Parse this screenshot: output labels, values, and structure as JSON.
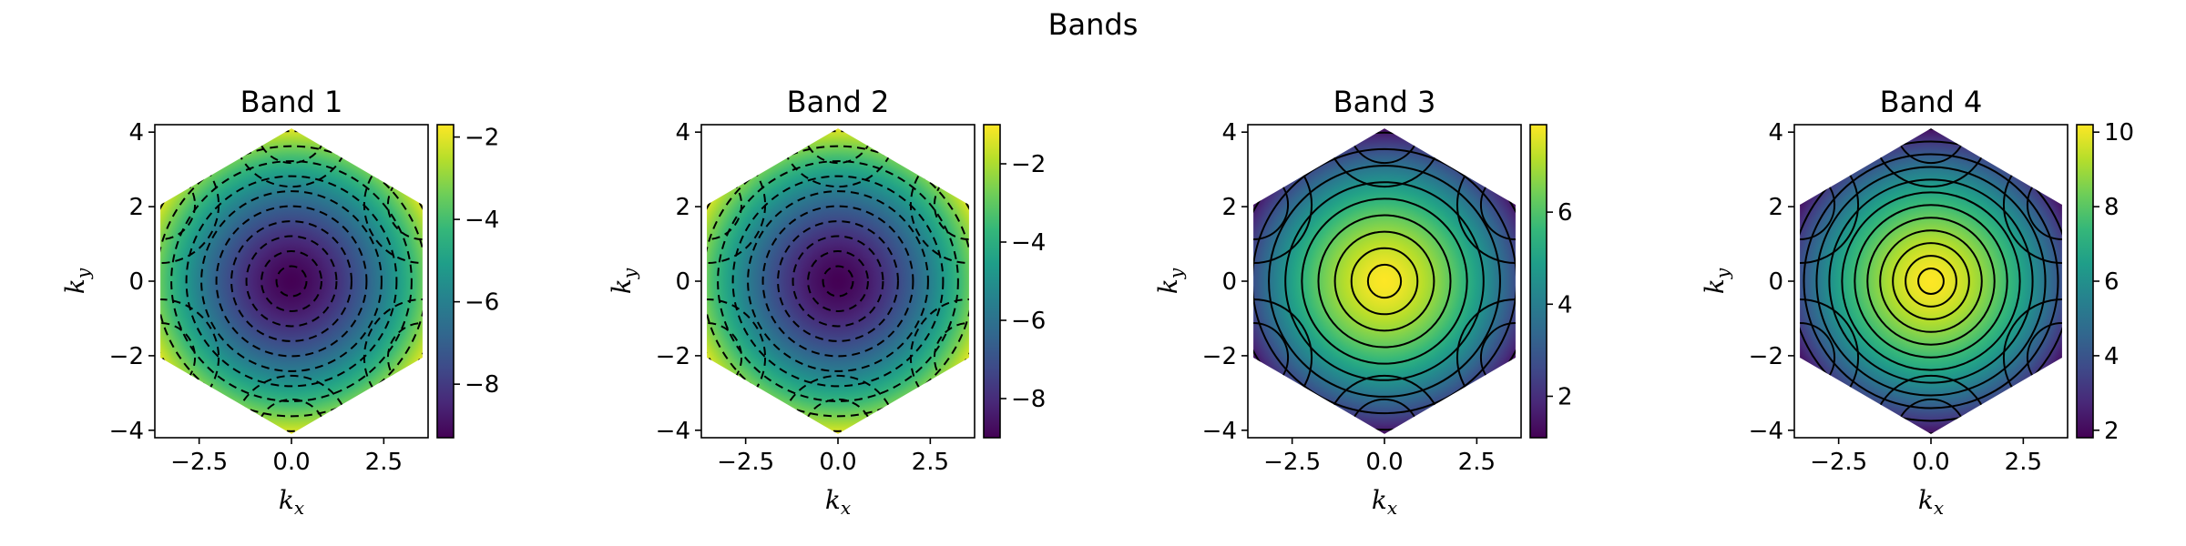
{
  "figure": {
    "suptitle": "Bands",
    "colormap": "viridis",
    "viridis_stops": [
      "#440154",
      "#482878",
      "#3e4a89",
      "#31688e",
      "#26828e",
      "#1f9e89",
      "#35b779",
      "#6ece58",
      "#b5de2b",
      "#fde725"
    ]
  },
  "chart_data": [
    {
      "type": "heatmap",
      "title": "Band 1",
      "xlabel": "k",
      "xlabel_sub": "x",
      "ylabel": "k",
      "ylabel_sub": "y",
      "xlim": [
        -3.7,
        3.7
      ],
      "ylim": [
        -4.2,
        4.2
      ],
      "x_ticks": [
        -2.5,
        0.0,
        2.5
      ],
      "x_tick_labels": [
        "−2.5",
        "0.0",
        "2.5"
      ],
      "y_ticks": [
        -4,
        -2,
        0,
        2,
        4
      ],
      "y_tick_labels": [
        "−4",
        "−2",
        "0",
        "2",
        "4"
      ],
      "domain": "hexagonal Brillouin zone, vertices at (0, ±4.1) and (±3.55, ±2.05)",
      "center_value": -9.3,
      "edge_value": -1.7,
      "shape": "minimum at center, increasing outward",
      "colorbar_range": [
        -9.3,
        -1.7
      ],
      "colorbar_ticks": [
        -8,
        -6,
        -4,
        -2
      ],
      "colorbar_tick_labels": [
        "−8",
        "−6",
        "−4",
        "−2"
      ],
      "contour_style": "dashed",
      "contour_levels": 10
    },
    {
      "type": "heatmap",
      "title": "Band 2",
      "xlabel": "k",
      "xlabel_sub": "x",
      "ylabel": "k",
      "ylabel_sub": "y",
      "xlim": [
        -3.7,
        3.7
      ],
      "ylim": [
        -4.2,
        4.2
      ],
      "x_ticks": [
        -2.5,
        0.0,
        2.5
      ],
      "x_tick_labels": [
        "−2.5",
        "0.0",
        "2.5"
      ],
      "y_ticks": [
        -4,
        -2,
        0,
        2,
        4
      ],
      "y_tick_labels": [
        "−4",
        "−2",
        "0",
        "2",
        "4"
      ],
      "domain": "hexagonal Brillouin zone, vertices at (0, ±4.1) and (±3.55, ±2.05)",
      "center_value": -9.0,
      "edge_value": -1.0,
      "shape": "minimum at center, increasing outward",
      "colorbar_range": [
        -9.0,
        -1.0
      ],
      "colorbar_ticks": [
        -8,
        -6,
        -4,
        -2
      ],
      "colorbar_tick_labels": [
        "−8",
        "−6",
        "−4",
        "−2"
      ],
      "contour_style": "dashed",
      "contour_levels": 10
    },
    {
      "type": "heatmap",
      "title": "Band 3",
      "xlabel": "k",
      "xlabel_sub": "x",
      "ylabel": "k",
      "ylabel_sub": "y",
      "xlim": [
        -3.7,
        3.7
      ],
      "ylim": [
        -4.2,
        4.2
      ],
      "x_ticks": [
        -2.5,
        0.0,
        2.5
      ],
      "x_tick_labels": [
        "−2.5",
        "0.0",
        "2.5"
      ],
      "y_ticks": [
        -4,
        -2,
        0,
        2,
        4
      ],
      "y_tick_labels": [
        "−4",
        "−2",
        "0",
        "2",
        "4"
      ],
      "domain": "hexagonal Brillouin zone, vertices at (0, ±4.1) and (±3.55, ±2.05)",
      "center_value": 7.9,
      "edge_value": 1.1,
      "shape": "maximum at center, decreasing outward",
      "colorbar_range": [
        1.1,
        7.9
      ],
      "colorbar_ticks": [
        2,
        4,
        6
      ],
      "colorbar_tick_labels": [
        "2",
        "4",
        "6"
      ],
      "contour_style": "solid",
      "contour_levels": 9
    },
    {
      "type": "heatmap",
      "title": "Band 4",
      "xlabel": "k",
      "xlabel_sub": "x",
      "ylabel": "k",
      "ylabel_sub": "y",
      "xlim": [
        -3.7,
        3.7
      ],
      "ylim": [
        -4.2,
        4.2
      ],
      "x_ticks": [
        -2.5,
        0.0,
        2.5
      ],
      "x_tick_labels": [
        "−2.5",
        "0.0",
        "2.5"
      ],
      "y_ticks": [
        -4,
        -2,
        0,
        2,
        4
      ],
      "y_tick_labels": [
        "−4",
        "−2",
        "0",
        "2",
        "4"
      ],
      "domain": "hexagonal Brillouin zone, vertices at (0, ±4.1) and (±3.55, ±2.05)",
      "center_value": 10.2,
      "edge_value": 1.8,
      "shape": "maximum at center, decreasing outward",
      "colorbar_range": [
        1.8,
        10.2
      ],
      "colorbar_ticks": [
        2,
        4,
        6,
        8,
        10
      ],
      "colorbar_tick_labels": [
        "2",
        "4",
        "6",
        "8",
        "10"
      ],
      "contour_style": "solid",
      "contour_levels": 12
    }
  ]
}
